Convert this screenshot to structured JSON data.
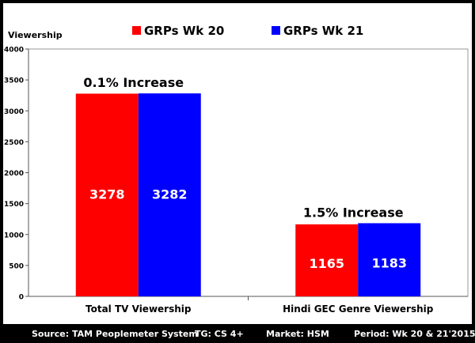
{
  "chart_data": {
    "type": "bar",
    "title": "",
    "ylabel": "Viewership",
    "xlabel": "",
    "ylim": [
      0,
      4000
    ],
    "yticks": [
      0,
      500,
      1000,
      1500,
      2000,
      2500,
      3000,
      3500,
      4000
    ],
    "categories": [
      "Total TV Viewership",
      "Hindi GEC Genre Viewership"
    ],
    "series": [
      {
        "name": "GRPs Wk 20",
        "color": "#ff0000",
        "values": [
          3278,
          1165
        ]
      },
      {
        "name": "GRPs Wk 21",
        "color": "#0000ff",
        "values": [
          3282,
          1183
        ]
      }
    ],
    "annotations": [
      "0.1% Increase",
      "1.5% Increase"
    ],
    "legend_position": "top",
    "grid": false
  },
  "footer": {
    "source": "Source: TAM Peoplemeter System",
    "tg": "TG: CS 4+",
    "market": "Market: HSM",
    "period": "Period: Wk 20 & 21'2015"
  }
}
